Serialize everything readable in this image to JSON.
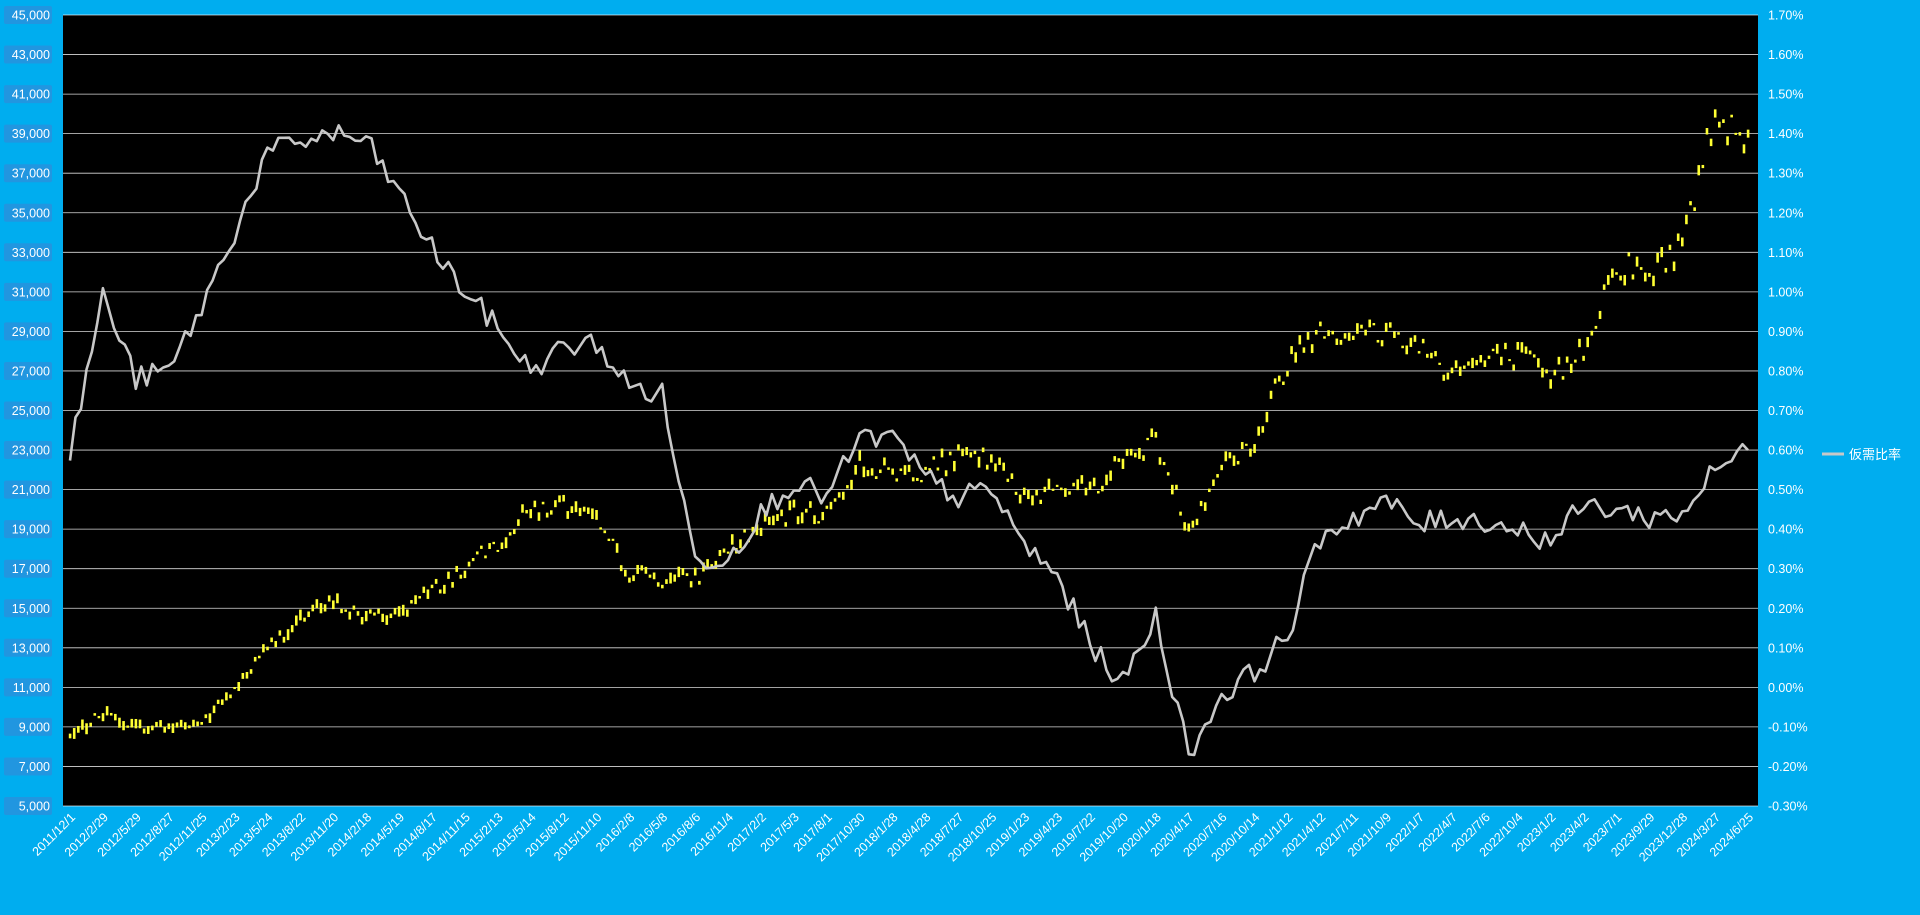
{
  "colors": {
    "background": "#00adef",
    "plot_area": "#000000",
    "gridline": "#ffffff",
    "candle_series": "#ffff33",
    "ratio_series": "#c8c8c8",
    "axis_text": "#ffffff",
    "left_tick_box": "#2196e0"
  },
  "chart_data": {
    "type": "line",
    "title": "",
    "xlabel": "",
    "ylabel": "",
    "left_axis": {
      "ylim": [
        5000,
        45000
      ],
      "ticks": [
        "45,000",
        "43,000",
        "41,000",
        "39,000",
        "37,000",
        "35,000",
        "33,000",
        "31,000",
        "29,000",
        "27,000",
        "25,000",
        "23,000",
        "21,000",
        "19,000",
        "17,000",
        "15,000",
        "13,000",
        "11,000",
        "9,000",
        "7,000",
        "5,000"
      ]
    },
    "right_axis": {
      "ylim": [
        -0.3,
        1.7
      ],
      "unit": "%",
      "ticks": [
        "1.70%",
        "1.60%",
        "1.50%",
        "1.40%",
        "1.30%",
        "1.20%",
        "1.10%",
        "1.00%",
        "0.90%",
        "0.80%",
        "0.70%",
        "0.60%",
        "0.50%",
        "0.40%",
        "0.30%",
        "0.20%",
        "0.10%",
        "0.00%",
        "-0.10%",
        "-0.20%",
        "-0.30%"
      ]
    },
    "x_tick_labels": [
      "2011/12/1",
      "2012/2/29",
      "2012/5/29",
      "2012/8/27",
      "2012/11/25",
      "2013/2/23",
      "2013/5/24",
      "2013/8/22",
      "2013/11/20",
      "2014/2/18",
      "2014/5/19",
      "2014/8/17",
      "2014/11/15",
      "2015/2/13",
      "2015/5/14",
      "2015/8/12",
      "2015/11/10",
      "2016/2/8",
      "2016/5/8",
      "2016/8/6",
      "2016/11/4",
      "2017/2/2",
      "2017/5/3",
      "2017/8/1",
      "2017/10/30",
      "2018/1/28",
      "2018/4/28",
      "2018/7/27",
      "2018/10/25",
      "2019/1/23",
      "2019/4/23",
      "2019/7/22",
      "2019/10/20",
      "2020/1/18",
      "2020/4/17",
      "2020/7/16",
      "2020/10/14",
      "2021/1/12",
      "2021/4/12",
      "2021/7/11",
      "2021/10/9",
      "2022/1/7",
      "2022/4/7",
      "2022/7/6",
      "2022/10/4",
      "2023/1/2",
      "2023/4/2",
      "2023/7/1",
      "2023/9/29",
      "2023/12/28",
      "2024/3/27",
      "2024/6/25"
    ],
    "grid": true,
    "legend": {
      "position": "right"
    },
    "series": [
      {
        "axis": "left",
        "style": "candlestick",
        "x": [
          "2011/12/1",
          "2012/2/29",
          "2012/5/29",
          "2012/8/27",
          "2012/11/25",
          "2013/2/23",
          "2013/5/24",
          "2013/8/22",
          "2013/11/20",
          "2014/2/18",
          "2014/5/19",
          "2014/8/17",
          "2014/11/15",
          "2015/2/13",
          "2015/5/14",
          "2015/8/12",
          "2015/11/10",
          "2016/2/8",
          "2016/5/8",
          "2016/8/6",
          "2016/11/4",
          "2017/2/2",
          "2017/5/3",
          "2017/8/1",
          "2017/10/30",
          "2018/1/28",
          "2018/4/28",
          "2018/7/27",
          "2018/10/25",
          "2019/1/23",
          "2019/4/23",
          "2019/7/22",
          "2019/10/20",
          "2020/1/18",
          "2020/4/17",
          "2020/7/16",
          "2020/10/14",
          "2021/1/12",
          "2021/4/12",
          "2021/7/11",
          "2021/10/9",
          "2022/1/7",
          "2022/4/7",
          "2022/7/6",
          "2022/10/4",
          "2023/1/2",
          "2023/4/2",
          "2023/7/1",
          "2023/9/29",
          "2023/12/28",
          "2024/3/27",
          "2024/6/25"
        ],
        "values": [
          8500,
          9700,
          9000,
          9000,
          9200,
          10900,
          13000,
          14500,
          15300,
          14500,
          14800,
          15900,
          17000,
          18300,
          20000,
          20200,
          19300,
          16800,
          16500,
          16500,
          18000,
          19100,
          19800,
          19800,
          22300,
          21800,
          22000,
          22600,
          22500,
          20500,
          21300,
          21000,
          22500,
          23500,
          19000,
          22300,
          23300,
          27500,
          29300,
          28800,
          29000,
          28300,
          27000,
          27500,
          27800,
          26500,
          28200,
          32500,
          31800,
          33500,
          40000,
          39000
        ]
      },
      {
        "name": "仮需比率",
        "axis": "right",
        "x": [
          "2011/12/1",
          "2012/2/29",
          "2012/5/29",
          "2012/8/27",
          "2012/11/25",
          "2013/2/23",
          "2013/5/24",
          "2013/8/22",
          "2013/11/20",
          "2014/2/18",
          "2014/5/19",
          "2014/8/17",
          "2014/11/15",
          "2015/2/13",
          "2015/5/14",
          "2015/8/12",
          "2015/11/10",
          "2016/2/8",
          "2016/5/8",
          "2016/8/6",
          "2016/11/4",
          "2017/2/2",
          "2017/5/3",
          "2017/8/1",
          "2017/10/30",
          "2018/1/28",
          "2018/4/28",
          "2018/7/27",
          "2018/10/25",
          "2019/1/23",
          "2019/4/23",
          "2019/7/22",
          "2019/10/20",
          "2020/1/18",
          "2020/4/17",
          "2020/7/16",
          "2020/10/14",
          "2021/1/12",
          "2021/4/12",
          "2021/7/11",
          "2021/10/9",
          "2022/1/7",
          "2022/4/7",
          "2022/7/6",
          "2022/10/4",
          "2023/1/2",
          "2023/4/2",
          "2023/7/1",
          "2023/9/29",
          "2023/12/28",
          "2024/3/27",
          "2024/6/25"
        ],
        "values": [
          0.59,
          0.99,
          0.78,
          0.8,
          0.96,
          1.15,
          1.35,
          1.38,
          1.4,
          1.38,
          1.25,
          1.11,
          1.0,
          0.91,
          0.8,
          0.86,
          0.87,
          0.76,
          0.74,
          0.32,
          0.33,
          0.44,
          0.52,
          0.48,
          0.63,
          0.63,
          0.53,
          0.48,
          0.5,
          0.36,
          0.28,
          0.11,
          0.01,
          0.18,
          -0.17,
          -0.02,
          0.04,
          0.13,
          0.38,
          0.43,
          0.47,
          0.41,
          0.43,
          0.42,
          0.4,
          0.37,
          0.46,
          0.45,
          0.43,
          0.44,
          0.55,
          0.6
        ]
      }
    ]
  }
}
